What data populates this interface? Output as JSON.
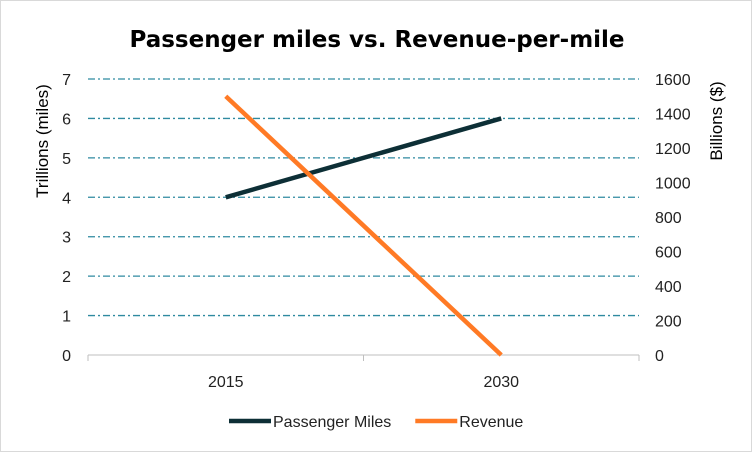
{
  "chart_data": {
    "type": "line",
    "title": "Passenger miles vs. Revenue-per-mile",
    "categories": [
      "2015",
      "2030"
    ],
    "y_left": {
      "label": "Trillions (miles)",
      "ticks": [
        0,
        1,
        2,
        3,
        4,
        5,
        6,
        7
      ],
      "range": [
        0,
        7
      ]
    },
    "y_right": {
      "label": "Billions ($)",
      "ticks": [
        0,
        200,
        400,
        600,
        800,
        1000,
        1200,
        1400,
        1600
      ],
      "range": [
        0,
        1600
      ]
    },
    "grid": "horizontal, dash-dot",
    "legend_position": "bottom",
    "series": [
      {
        "name": "Passenger Miles",
        "axis": "left",
        "values": [
          4,
          6
        ],
        "color": "#0d2f36"
      },
      {
        "name": "Revenue",
        "axis": "right",
        "values": [
          1500,
          0
        ],
        "color": "#ff7a25"
      }
    ],
    "gridline_color": "#2f8aa0"
  }
}
